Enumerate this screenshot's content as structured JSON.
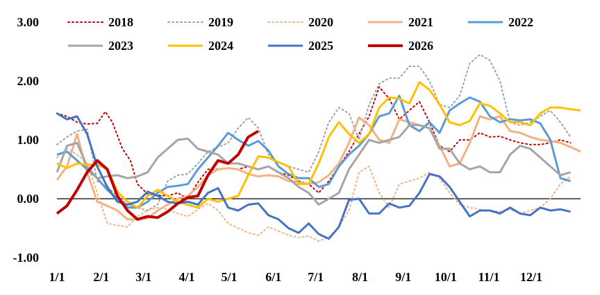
{
  "chart_data": {
    "type": "line",
    "title": "",
    "xlabel": "",
    "ylabel": "",
    "ylim": [
      -1.0,
      3.0
    ],
    "yticks": [
      -1.0,
      0.0,
      1.0,
      2.0,
      3.0
    ],
    "ytick_labels": [
      "-1.00",
      "0.00",
      "1.00",
      "2.00",
      "3.00"
    ],
    "xlim": [
      1,
      53
    ],
    "xticks": [
      1,
      5.4,
      9.6,
      13.9,
      18.1,
      22.5,
      26.7,
      31.1,
      35.4,
      39.6,
      43.9,
      48.1
    ],
    "xtick_labels": [
      "1/1",
      "2/1",
      "3/1",
      "4/1",
      "5/1",
      "6/1",
      "7/1",
      "8/1",
      "9/1",
      "10/1",
      "11/1",
      "12/1"
    ],
    "x_unit": "week of year",
    "grid": false,
    "zero_line": true,
    "legend": {
      "position": "top",
      "columns": 5
    },
    "series": [
      {
        "name": "2018",
        "color": "#C00000",
        "dash": "dot",
        "width": 2,
        "x": [
          1,
          2,
          3,
          4,
          5,
          5.8,
          6.5,
          7.5,
          8.3,
          9,
          10,
          11,
          12,
          13,
          14,
          15,
          16,
          17,
          18,
          19,
          20,
          21,
          22,
          23,
          24,
          25,
          26,
          27,
          28,
          29,
          30,
          31,
          32,
          33,
          34,
          35,
          36,
          37,
          38,
          39,
          40,
          41,
          42,
          43,
          44,
          45,
          46,
          47,
          48,
          49,
          50,
          51,
          52
        ],
        "y": [
          1.45,
          1.4,
          1.3,
          1.27,
          1.28,
          1.48,
          1.3,
          0.85,
          0.65,
          0.25,
          0.08,
          0.06,
          0.05,
          0.1,
          0.0,
          0.28,
          0.5,
          0.5,
          0.52,
          0.5,
          0.55,
          0.5,
          0.55,
          0.45,
          0.4,
          0.3,
          0.25,
          0.1,
          0.3,
          0.55,
          0.8,
          1.1,
          1.4,
          1.9,
          1.7,
          1.35,
          1.5,
          1.65,
          1.3,
          0.9,
          0.8,
          1.0,
          1.0,
          1.12,
          1.05,
          1.06,
          1.0,
          0.95,
          0.92,
          0.92,
          0.95,
          1.0,
          0.95
        ]
      },
      {
        "name": "2019",
        "color": "#A0A0A0",
        "dash": "dot",
        "width": 2,
        "x": [
          1,
          2,
          3,
          4,
          5,
          6,
          7,
          8,
          9,
          10,
          11,
          12,
          13,
          14,
          15,
          16,
          17,
          18,
          19,
          20,
          21,
          22,
          23,
          24,
          25,
          26,
          27,
          28,
          29,
          30,
          31,
          32,
          33,
          34,
          35,
          36,
          37,
          38,
          39,
          40,
          41,
          42,
          43,
          44,
          45,
          46,
          47,
          48,
          49,
          50,
          51,
          52
        ],
        "y": [
          0.92,
          1.05,
          1.15,
          1.18,
          0.3,
          0.2,
          0.05,
          -0.1,
          -0.15,
          -0.2,
          -0.1,
          0.3,
          0.4,
          0.42,
          0.6,
          0.8,
          0.88,
          0.95,
          1.2,
          1.38,
          1.2,
          0.75,
          0.62,
          0.55,
          0.5,
          0.45,
          0.8,
          1.3,
          1.55,
          1.45,
          1.0,
          1.6,
          1.95,
          2.05,
          2.05,
          2.25,
          2.25,
          2.0,
          1.6,
          1.55,
          1.75,
          2.3,
          2.45,
          2.35,
          2.0,
          1.3,
          1.25,
          1.3,
          1.4,
          1.5,
          1.3,
          1.05
        ]
      },
      {
        "name": "2020",
        "color": "#F4B183",
        "dash": "dot",
        "width": 2,
        "x": [
          1,
          2,
          3,
          4,
          5,
          6,
          7,
          8,
          9,
          10,
          11,
          12,
          13,
          14,
          15,
          16,
          17,
          18,
          19,
          20,
          21,
          22,
          23,
          24,
          25,
          26,
          27,
          28,
          29,
          30,
          31,
          32,
          33,
          34,
          35,
          36,
          37,
          38,
          39,
          40,
          41,
          42,
          43,
          44,
          45,
          46,
          47,
          48,
          49,
          50,
          51,
          52
        ],
        "y": [
          0.7,
          0.85,
          0.75,
          0.6,
          0.1,
          -0.42,
          -0.45,
          -0.48,
          -0.3,
          -0.2,
          -0.15,
          -0.18,
          -0.25,
          -0.3,
          -0.18,
          -0.08,
          -0.2,
          -0.42,
          -0.5,
          -0.58,
          -0.62,
          -0.48,
          -0.55,
          -0.62,
          -0.66,
          -0.63,
          -0.72,
          -0.65,
          -0.48,
          -0.2,
          0.45,
          0.55,
          0.1,
          -0.15,
          0.25,
          0.3,
          0.35,
          0.45,
          0.35,
          0.1,
          -0.1,
          -0.15,
          -0.18,
          -0.2,
          -0.22,
          -0.18,
          -0.25,
          -0.2,
          -0.15,
          0.0,
          0.25,
          0.38
        ]
      },
      {
        "name": "2021",
        "color": "#F4B183",
        "dash": "solid",
        "width": 3,
        "x": [
          1,
          2,
          3,
          4,
          5,
          6,
          7,
          8,
          9,
          10,
          11,
          12,
          13,
          14,
          15,
          16,
          17,
          18,
          19,
          20,
          21,
          22,
          23,
          24,
          25,
          26,
          27,
          28,
          29,
          30,
          31,
          32,
          33,
          34,
          35,
          36,
          37,
          38,
          39,
          40,
          41,
          42,
          43,
          44,
          45,
          46,
          47,
          48,
          49,
          50,
          51,
          52,
          53
        ],
        "y": [
          0.32,
          0.55,
          1.1,
          0.45,
          -0.05,
          -0.12,
          -0.2,
          -0.35,
          -0.35,
          -0.33,
          -0.2,
          -0.1,
          0.0,
          0.05,
          0.2,
          0.4,
          0.5,
          0.52,
          0.5,
          0.42,
          0.38,
          0.4,
          0.38,
          0.3,
          0.28,
          0.25,
          0.28,
          0.4,
          0.6,
          0.95,
          1.38,
          1.25,
          1.0,
          0.95,
          1.35,
          1.3,
          1.25,
          1.2,
          0.9,
          0.55,
          0.6,
          0.95,
          1.4,
          1.35,
          1.4,
          1.15,
          1.12,
          1.05,
          1.0,
          0.98,
          0.95,
          0.88,
          0.8
        ]
      },
      {
        "name": "2022",
        "color": "#5B9BD5",
        "dash": "solid",
        "width": 3,
        "x": [
          1,
          2,
          3,
          4,
          5,
          6,
          7,
          8,
          9,
          10,
          11,
          12,
          13,
          14,
          15,
          16,
          17,
          18,
          19,
          20,
          21,
          22,
          23,
          24,
          25,
          26,
          27,
          28,
          29,
          30,
          31,
          32,
          33,
          34,
          35,
          36,
          37,
          38,
          39,
          40,
          41,
          42,
          43,
          44,
          45,
          46,
          47,
          48,
          49,
          50,
          51,
          52
        ],
        "y": [
          0.75,
          0.8,
          0.65,
          0.5,
          0.35,
          0.15,
          0.0,
          -0.15,
          -0.15,
          -0.05,
          0.1,
          0.2,
          0.22,
          0.25,
          0.5,
          0.7,
          0.9,
          1.12,
          1.0,
          0.9,
          0.98,
          0.82,
          0.55,
          0.42,
          0.35,
          0.35,
          0.2,
          0.25,
          0.55,
          0.75,
          0.9,
          1.1,
          1.4,
          1.45,
          1.75,
          1.25,
          1.15,
          1.3,
          1.12,
          1.5,
          1.62,
          1.72,
          1.65,
          1.4,
          1.3,
          1.35,
          1.33,
          1.35,
          1.28,
          1.0,
          0.35,
          0.3
        ]
      },
      {
        "name": "2023",
        "color": "#A5A5A5",
        "dash": "solid",
        "width": 3,
        "x": [
          1,
          2,
          3,
          4,
          5,
          6,
          7,
          8,
          9,
          10,
          11,
          12,
          13,
          14,
          15,
          16,
          17,
          18,
          19,
          20,
          21,
          22,
          23,
          24,
          25,
          26,
          27,
          28,
          29,
          30,
          31,
          32,
          33,
          34,
          35,
          36,
          37,
          38,
          39,
          40,
          41,
          42,
          43,
          44,
          45,
          46,
          47,
          48,
          49,
          50,
          51,
          52
        ],
        "y": [
          0.45,
          0.9,
          0.95,
          0.55,
          0.35,
          0.38,
          0.4,
          0.35,
          0.38,
          0.45,
          0.7,
          0.85,
          1.0,
          1.02,
          0.85,
          0.8,
          0.75,
          0.6,
          0.6,
          0.55,
          0.5,
          0.55,
          0.45,
          0.35,
          0.2,
          0.1,
          -0.1,
          0.0,
          0.1,
          0.5,
          0.75,
          1.0,
          0.95,
          1.0,
          1.05,
          1.25,
          1.25,
          1.2,
          0.85,
          0.85,
          0.6,
          0.5,
          0.55,
          0.45,
          0.45,
          0.75,
          0.9,
          0.85,
          0.7,
          0.55,
          0.4,
          0.45
        ]
      },
      {
        "name": "2024",
        "color": "#FFC000",
        "dash": "solid",
        "width": 3,
        "x": [
          1,
          2,
          3,
          4,
          5,
          6,
          7,
          8,
          9,
          10,
          11,
          12,
          13,
          14,
          15,
          16,
          17,
          18,
          19,
          20,
          21,
          22,
          23,
          24,
          25,
          26,
          27,
          28,
          29,
          30,
          31,
          32,
          33,
          34,
          35,
          36,
          37,
          38,
          39,
          40,
          41,
          42,
          43,
          44,
          45,
          46,
          47,
          48,
          49,
          50,
          51,
          52,
          53
        ],
        "y": [
          0.6,
          0.52,
          0.6,
          0.58,
          0.58,
          0.5,
          0.12,
          -0.05,
          -0.15,
          0.05,
          0.15,
          0.05,
          -0.05,
          -0.1,
          -0.15,
          0.0,
          -0.05,
          0.0,
          0.05,
          0.4,
          0.72,
          0.7,
          0.62,
          0.55,
          0.25,
          0.25,
          0.6,
          1.05,
          1.3,
          1.1,
          0.95,
          1.1,
          1.55,
          1.72,
          1.7,
          1.62,
          1.98,
          1.85,
          1.6,
          1.3,
          1.25,
          1.32,
          1.62,
          1.58,
          1.45,
          1.3,
          1.3,
          1.25,
          1.45,
          1.55,
          1.55,
          1.52,
          1.5
        ]
      },
      {
        "name": "2025",
        "color": "#4472C4",
        "dash": "solid",
        "width": 3,
        "x": [
          1,
          2,
          3,
          4,
          5,
          6,
          7,
          8,
          9,
          10,
          11,
          12,
          13,
          14,
          15,
          16,
          17,
          18,
          19,
          20,
          21,
          22,
          23,
          24,
          25,
          26,
          27,
          28,
          29,
          30,
          31,
          32,
          33,
          34,
          35,
          36,
          37,
          38,
          39,
          40,
          41,
          42,
          43,
          44,
          45,
          46,
          47,
          48,
          49,
          50,
          51,
          52
        ],
        "y": [
          1.45,
          1.35,
          1.4,
          1.1,
          0.55,
          0.2,
          -0.05,
          -0.1,
          -0.05,
          0.12,
          0.05,
          -0.05,
          -0.08,
          -0.05,
          -0.1,
          0.1,
          0.18,
          -0.15,
          -0.2,
          -0.1,
          -0.08,
          -0.28,
          -0.35,
          -0.5,
          -0.58,
          -0.42,
          -0.6,
          -0.68,
          -0.48,
          -0.02,
          0.0,
          -0.25,
          -0.25,
          -0.08,
          -0.15,
          -0.12,
          0.1,
          0.42,
          0.38,
          0.2,
          -0.05,
          -0.3,
          -0.2,
          -0.2,
          -0.25,
          -0.15,
          -0.25,
          -0.28,
          -0.15,
          -0.2,
          -0.18,
          -0.22
        ]
      },
      {
        "name": "2026",
        "color": "#C00000",
        "dash": "solid",
        "width": 4,
        "x": [
          1,
          2,
          3,
          4,
          5,
          6,
          7,
          8,
          9,
          10,
          11,
          12,
          13,
          14,
          15,
          16,
          17,
          18,
          19,
          20,
          21,
          22
        ],
        "y": [
          -0.25,
          -0.12,
          0.15,
          0.45,
          0.65,
          0.5,
          0.05,
          -0.2,
          -0.35,
          -0.3,
          -0.32,
          -0.22,
          -0.08,
          0.02,
          0.05,
          0.4,
          0.65,
          0.6,
          0.75,
          1.05,
          1.15,
          null
        ]
      }
    ]
  }
}
